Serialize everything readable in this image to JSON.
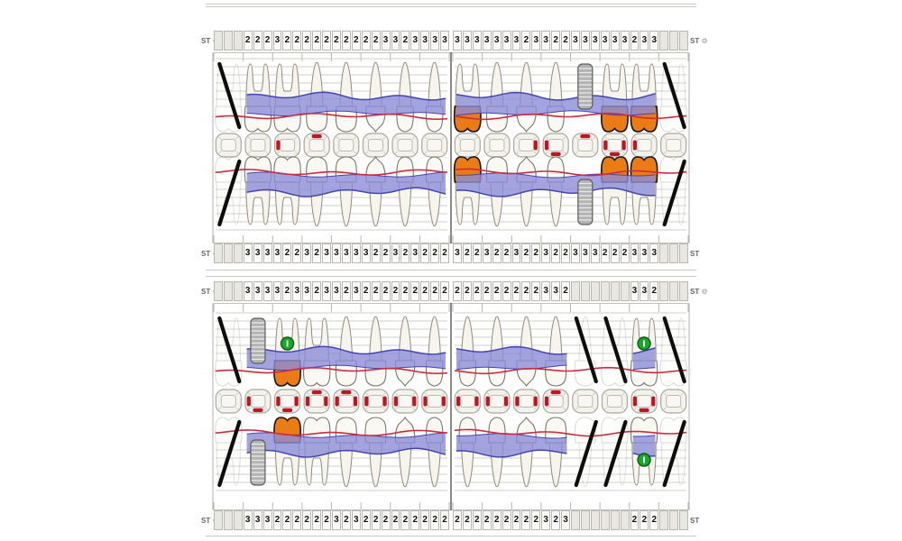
{
  "app": {
    "row_label": "ST",
    "gear_icon": "⚙"
  },
  "colors": {
    "pocket_band": "#8c8cd8",
    "band_edge": "#4545b2",
    "gingiva_line": "#ce2b3e",
    "crown_fill": "#ea7c15",
    "marker_green": "#1ca52b",
    "missing_line": "#0d0d0d",
    "defect_mark": "#c41420",
    "tooth_fill": "#f6f4ec",
    "tooth_stroke": "#8e8c80"
  },
  "charts": [
    {
      "id": "upper",
      "strip_top": {
        "left": [
          "",
          "",
          "",
          "2",
          "2",
          "2",
          "3",
          "2",
          "2",
          "2",
          "2",
          "2",
          "2",
          "2",
          "2",
          "2",
          "2",
          "3",
          "3",
          "2",
          "3",
          "3",
          "3",
          "3"
        ],
        "right": [
          "3",
          "3",
          "3",
          "3",
          "3",
          "3",
          "3",
          "2",
          "3",
          "3",
          "2",
          "2",
          "3",
          "3",
          "3",
          "3",
          "3",
          "3",
          "2",
          "3",
          "3",
          "",
          "",
          ""
        ]
      },
      "strip_bottom": {
        "left": [
          "",
          "",
          "",
          "3",
          "3",
          "3",
          "3",
          "2",
          "2",
          "3",
          "2",
          "3",
          "3",
          "3",
          "3",
          "3",
          "2",
          "2",
          "3",
          "2",
          "3",
          "2",
          "2",
          "2"
        ],
        "right": [
          "3",
          "2",
          "2",
          "3",
          "2",
          "2",
          "3",
          "2",
          "2",
          "3",
          "2",
          "2",
          "3",
          "3",
          "3",
          "2",
          "2",
          "2",
          "3",
          "3",
          "3",
          "",
          "",
          ""
        ]
      },
      "teeth_rows": {
        "outer": {
          "left": [
            {
              "type": "molar",
              "status": "missing"
            },
            {
              "type": "molar",
              "status": "normal"
            },
            {
              "type": "molar",
              "status": "normal"
            },
            {
              "type": "premolar",
              "status": "normal"
            },
            {
              "type": "premolar",
              "status": "normal"
            },
            {
              "type": "canine",
              "status": "normal"
            },
            {
              "type": "incisor",
              "status": "normal"
            },
            {
              "type": "incisor",
              "status": "normal"
            }
          ],
          "right": [
            {
              "type": "molar",
              "status": "crown"
            },
            {
              "type": "premolar",
              "status": "normal"
            },
            {
              "type": "canine",
              "status": "normal"
            },
            {
              "type": "incisor",
              "status": "normal"
            },
            {
              "type": "implant",
              "status": "normal"
            },
            {
              "type": "molar",
              "status": "crown"
            },
            {
              "type": "molar",
              "status": "crown"
            },
            {
              "type": "molar",
              "status": "missing"
            }
          ]
        },
        "occlusal": {
          "left": [
            [],
            [],
            [
              "L"
            ],
            [
              "T"
            ],
            [],
            [],
            [],
            []
          ],
          "right": [
            [],
            [],
            [
              "R"
            ],
            [
              "L",
              "B"
            ],
            [
              "T"
            ],
            [
              "L",
              "B",
              "R"
            ],
            [
              "L"
            ],
            []
          ]
        },
        "inner": {
          "left": [
            {
              "type": "molar",
              "status": "missing"
            },
            {
              "type": "molar",
              "status": "normal"
            },
            {
              "type": "molar",
              "status": "normal"
            },
            {
              "type": "premolar",
              "status": "normal"
            },
            {
              "type": "premolar",
              "status": "normal"
            },
            {
              "type": "canine",
              "status": "normal"
            },
            {
              "type": "incisor",
              "status": "normal"
            },
            {
              "type": "incisor",
              "status": "normal"
            }
          ],
          "right": [
            {
              "type": "molar",
              "status": "crown"
            },
            {
              "type": "premolar",
              "status": "normal"
            },
            {
              "type": "canine",
              "status": "normal"
            },
            {
              "type": "incisor",
              "status": "normal"
            },
            {
              "type": "implant",
              "status": "normal"
            },
            {
              "type": "molar",
              "status": "crown"
            },
            {
              "type": "molar",
              "status": "crown"
            },
            {
              "type": "molar",
              "status": "missing"
            }
          ]
        }
      }
    },
    {
      "id": "lower",
      "strip_top": {
        "left": [
          "",
          "",
          "",
          "3",
          "3",
          "3",
          "3",
          "2",
          "3",
          "3",
          "2",
          "3",
          "3",
          "2",
          "3",
          "2",
          "2",
          "2",
          "2",
          "2",
          "2",
          "2",
          "2",
          "2"
        ],
        "right": [
          "2",
          "2",
          "2",
          "2",
          "2",
          "2",
          "2",
          "2",
          "2",
          "3",
          "3",
          "2",
          "",
          "",
          "",
          "",
          "",
          "",
          "3",
          "3",
          "2",
          "",
          "",
          ""
        ]
      },
      "strip_bottom": {
        "left": [
          "",
          "",
          "",
          "3",
          "3",
          "3",
          "2",
          "2",
          "2",
          "2",
          "2",
          "2",
          "3",
          "2",
          "3",
          "2",
          "2",
          "2",
          "2",
          "2",
          "2",
          "2",
          "2",
          "2"
        ],
        "right": [
          "2",
          "2",
          "2",
          "2",
          "2",
          "2",
          "2",
          "2",
          "2",
          "3",
          "2",
          "3",
          "",
          "",
          "",
          "",
          "",
          "",
          "2",
          "2",
          "2",
          "",
          "",
          ""
        ]
      },
      "teeth_rows": {
        "outer": {
          "left": [
            {
              "type": "molar",
              "status": "missing"
            },
            {
              "type": "implant",
              "status": "normal"
            },
            {
              "type": "molar",
              "status": "crown",
              "marker": "green"
            },
            {
              "type": "molar",
              "status": "normal"
            },
            {
              "type": "premolar",
              "status": "normal"
            },
            {
              "type": "premolar",
              "status": "normal"
            },
            {
              "type": "canine",
              "status": "normal"
            },
            {
              "type": "incisor",
              "status": "normal"
            }
          ],
          "right": [
            {
              "type": "incisor",
              "status": "normal"
            },
            {
              "type": "incisor",
              "status": "normal"
            },
            {
              "type": "canine",
              "status": "normal"
            },
            {
              "type": "premolar",
              "status": "normal"
            },
            {
              "type": "premolar",
              "status": "missing"
            },
            {
              "type": "molar",
              "status": "missing"
            },
            {
              "type": "molar",
              "status": "normal",
              "marker": "green"
            },
            {
              "type": "molar",
              "status": "missing"
            }
          ]
        },
        "occlusal": {
          "left": [
            [],
            [
              "L",
              "B"
            ],
            [
              "L",
              "B",
              "R"
            ],
            [
              "L",
              "T",
              "R"
            ],
            [
              "L",
              "T",
              "R"
            ],
            [
              "L",
              "R"
            ],
            [
              "L",
              "R"
            ],
            [
              "L",
              "R"
            ]
          ],
          "right": [
            [
              "L",
              "R"
            ],
            [
              "L",
              "R"
            ],
            [
              "L",
              "R"
            ],
            [
              "L",
              "T"
            ],
            [],
            [],
            [
              "L",
              "B",
              "R"
            ],
            []
          ]
        },
        "inner": {
          "left": [
            {
              "type": "molar",
              "status": "missing"
            },
            {
              "type": "implant",
              "status": "normal"
            },
            {
              "type": "molar",
              "status": "crown"
            },
            {
              "type": "molar",
              "status": "normal"
            },
            {
              "type": "premolar",
              "status": "normal"
            },
            {
              "type": "premolar",
              "status": "normal"
            },
            {
              "type": "canine",
              "status": "normal"
            },
            {
              "type": "incisor",
              "status": "normal"
            }
          ],
          "right": [
            {
              "type": "incisor",
              "status": "normal"
            },
            {
              "type": "incisor",
              "status": "normal"
            },
            {
              "type": "canine",
              "status": "normal"
            },
            {
              "type": "premolar",
              "status": "normal"
            },
            {
              "type": "premolar",
              "status": "missing"
            },
            {
              "type": "molar",
              "status": "missing"
            },
            {
              "type": "molar",
              "status": "normal",
              "marker": "green"
            },
            {
              "type": "molar",
              "status": "missing"
            }
          ]
        }
      }
    }
  ]
}
